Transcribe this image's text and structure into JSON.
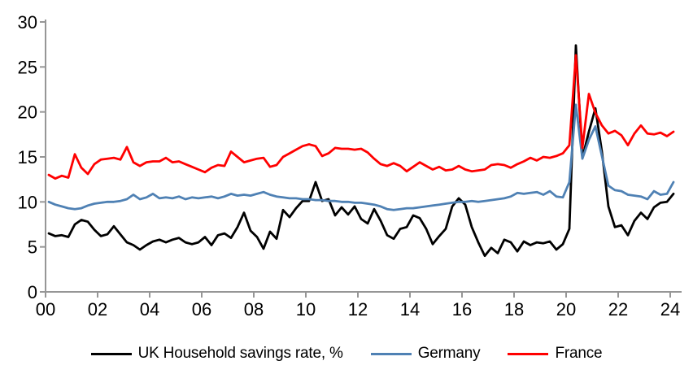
{
  "chart_data": {
    "type": "line",
    "title": "",
    "frequency": "quarterly",
    "start_period": "2000-Q1",
    "end_period": "2024-Q1",
    "x_axis": {
      "tick_labels": [
        "00",
        "02",
        "04",
        "06",
        "08",
        "10",
        "12",
        "14",
        "16",
        "18",
        "20",
        "22",
        "24"
      ],
      "tick_years": [
        0,
        2,
        4,
        6,
        8,
        10,
        12,
        14,
        16,
        18,
        20,
        22,
        24
      ]
    },
    "y_axis": {
      "ticks": [
        "0",
        "5",
        "10",
        "15",
        "20",
        "25",
        "30"
      ],
      "tick_values": [
        0,
        5,
        10,
        15,
        20,
        25,
        30
      ],
      "range": [
        0,
        30
      ]
    },
    "grid": false,
    "legend_position": "bottom",
    "axis_color": "#969696",
    "text_color": "#000000",
    "background_color": "#ffffff",
    "series": [
      {
        "name": "UK Household savings rate, %",
        "color": "#000000",
        "values": [
          6.5,
          6.2,
          6.3,
          6.1,
          7.5,
          8.0,
          7.8,
          6.9,
          6.2,
          6.4,
          7.3,
          6.4,
          5.5,
          5.2,
          4.7,
          5.2,
          5.6,
          5.8,
          5.5,
          5.8,
          6.0,
          5.5,
          5.3,
          5.5,
          6.1,
          5.2,
          6.3,
          6.5,
          6.0,
          7.2,
          8.8,
          6.8,
          6.1,
          4.8,
          6.7,
          5.9,
          9.1,
          8.3,
          9.3,
          10.1,
          10.1,
          12.2,
          10.1,
          10.3,
          8.5,
          9.4,
          8.6,
          9.5,
          8.1,
          7.6,
          9.2,
          7.9,
          6.3,
          5.9,
          7.0,
          7.2,
          8.5,
          8.2,
          7.0,
          5.3,
          6.2,
          7.0,
          9.5,
          10.4,
          9.7,
          7.2,
          5.5,
          4.0,
          4.9,
          4.3,
          5.8,
          5.5,
          4.5,
          5.6,
          5.2,
          5.5,
          5.4,
          5.6,
          4.7,
          5.3,
          7.0,
          27.4,
          14.9,
          17.8,
          20.4,
          15.6,
          9.5,
          7.2,
          7.4,
          6.3,
          7.9,
          8.8,
          8.1,
          9.4,
          9.9,
          10.0,
          10.9
        ]
      },
      {
        "name": "Germany",
        "color": "#4f81b4",
        "values": [
          10.0,
          9.7,
          9.5,
          9.3,
          9.2,
          9.3,
          9.6,
          9.8,
          9.9,
          10.0,
          10.0,
          10.1,
          10.3,
          10.8,
          10.3,
          10.5,
          10.9,
          10.4,
          10.5,
          10.4,
          10.6,
          10.3,
          10.5,
          10.4,
          10.5,
          10.6,
          10.4,
          10.6,
          10.9,
          10.7,
          10.8,
          10.7,
          10.9,
          11.1,
          10.8,
          10.6,
          10.5,
          10.4,
          10.4,
          10.3,
          10.3,
          10.2,
          10.2,
          10.1,
          10.1,
          10.0,
          10.0,
          9.9,
          9.9,
          9.8,
          9.7,
          9.5,
          9.2,
          9.1,
          9.2,
          9.3,
          9.3,
          9.4,
          9.5,
          9.6,
          9.7,
          9.8,
          9.9,
          10.0,
          10.0,
          10.1,
          10.0,
          10.1,
          10.2,
          10.3,
          10.4,
          10.6,
          11.0,
          10.9,
          11.0,
          11.1,
          10.8,
          11.2,
          10.6,
          10.5,
          12.2,
          20.8,
          14.8,
          16.9,
          18.4,
          15.1,
          11.8,
          11.3,
          11.2,
          10.8,
          10.7,
          10.6,
          10.3,
          11.2,
          10.8,
          10.9,
          12.2
        ]
      },
      {
        "name": "France",
        "color": "#ff0000",
        "values": [
          13.0,
          12.6,
          12.9,
          12.7,
          15.3,
          13.8,
          13.1,
          14.2,
          14.7,
          14.8,
          14.9,
          14.7,
          16.1,
          14.4,
          14.0,
          14.4,
          14.5,
          14.5,
          14.9,
          14.4,
          14.5,
          14.2,
          13.9,
          13.6,
          13.3,
          13.8,
          14.1,
          14.0,
          15.6,
          15.0,
          14.4,
          14.6,
          14.8,
          14.9,
          13.9,
          14.1,
          15.0,
          15.4,
          15.8,
          16.2,
          16.4,
          16.2,
          15.1,
          15.4,
          16.0,
          15.9,
          15.9,
          15.8,
          15.9,
          15.5,
          14.8,
          14.2,
          14.0,
          14.3,
          14.0,
          13.4,
          13.9,
          14.4,
          14.0,
          13.6,
          13.9,
          13.5,
          13.6,
          14.0,
          13.6,
          13.4,
          13.5,
          13.6,
          14.1,
          14.2,
          14.1,
          13.8,
          14.2,
          14.5,
          14.9,
          14.6,
          15.0,
          14.9,
          15.1,
          15.4,
          16.3,
          26.3,
          16.0,
          22.0,
          19.9,
          18.5,
          17.6,
          17.9,
          17.4,
          16.3,
          17.6,
          18.5,
          17.6,
          17.5,
          17.7,
          17.3,
          17.8
        ]
      }
    ]
  }
}
